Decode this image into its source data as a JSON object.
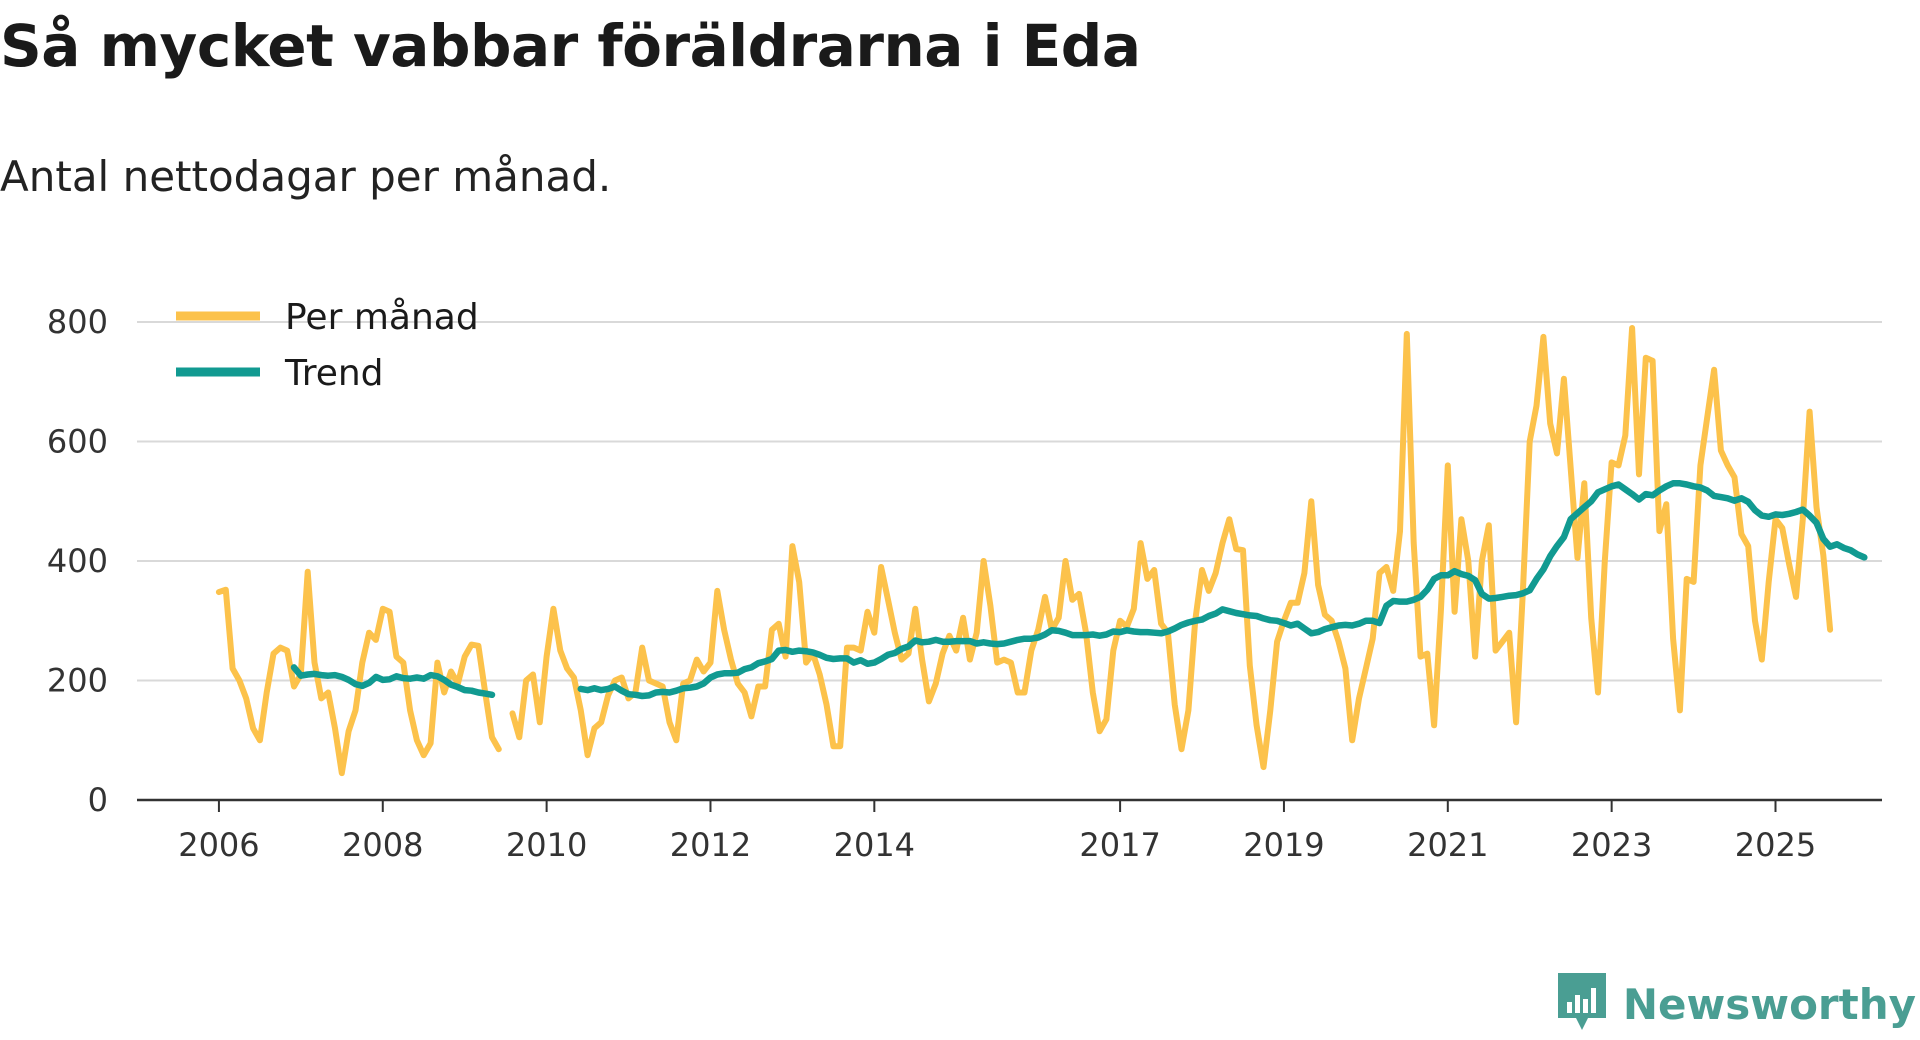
{
  "colors": {
    "monthly": "#fcc24b",
    "trend": "#119a91",
    "grid": "#d9d9d9",
    "axis": "#333333",
    "brand": "#4a9e93"
  },
  "brand": {
    "name": "Newsworthy",
    "icon": "bar-chart-logo-icon"
  },
  "chart_data": {
    "type": "line",
    "title": "Så mycket vabbar föräldrarna i Eda",
    "subtitle": "Antal nettodagar per månad.",
    "xlabel": "",
    "ylabel": "",
    "ylim": [
      0,
      800
    ],
    "xlim": [
      2005.0,
      2026.3
    ],
    "yticks": [
      0,
      200,
      400,
      600,
      800
    ],
    "xticks": [
      2006,
      2008,
      2010,
      2012,
      2014,
      2017,
      2019,
      2021,
      2023,
      2025
    ],
    "grid": true,
    "legend_position": "top-left",
    "series": [
      {
        "name": "Per månad",
        "segments": [
          {
            "start": 2006.0,
            "values": [
              348,
              352,
              220,
              200,
              170,
              120,
              100,
              180,
              245,
              255,
              250,
              190,
              210,
              382,
              230,
              170,
              180,
              120,
              45,
              115,
              150,
              230,
              280,
              268,
              320,
              315,
              240,
              230,
              150,
              100,
              75,
              95,
              230,
              180,
              215,
              195,
              240,
              260,
              258,
              180,
              105,
              85
            ]
          },
          {
            "start": 2009.5833,
            "values": [
              145,
              105,
              200,
              210,
              130,
              240,
              320,
              250,
              220,
              205,
              150,
              75,
              120,
              130,
              175,
              200,
              205,
              170,
              180,
              255,
              200,
              195,
              190,
              130,
              100,
              195,
              200,
              235,
              215,
              230,
              350,
              285,
              235,
              195,
              180,
              140,
              190,
              190,
              285,
              295,
              240,
              425,
              365,
              230,
              245,
              210,
              160,
              90,
              90,
              255,
              255,
              250,
              315,
              280,
              390,
              335,
              280,
              235,
              245,
              320,
              235,
              165,
              195,
              245,
              275,
              250,
              305,
              235,
              280,
              400,
              325,
              230,
              235,
              230,
              180,
              180,
              250,
              285,
              340,
              285,
              305,
              400,
              335,
              345,
              280,
              180,
              115,
              135,
              250,
              300,
              290,
              320,
              430,
              370,
              385,
              295,
              280,
              160,
              85,
              150,
              300,
              385,
              350,
              380,
              430,
              470,
              420,
              418,
              225,
              125,
              55,
              150,
              265,
              300,
              330,
              330,
              380,
              500,
              360,
              310,
              300,
              265,
              220,
              100,
              170,
              220,
              270,
              380,
              390,
              350,
              450,
              780,
              430,
              240,
              245,
              125,
              320,
              560,
              315,
              470,
              400,
              240,
              400,
              460,
              250,
              265,
              280,
              130,
              350,
              600,
              660,
              775,
              630,
              580,
              705,
              555,
              405,
              530,
              305,
              180,
              400,
              565,
              560,
              610,
              790,
              545,
              740,
              735,
              450,
              495,
              270,
              150,
              370,
              365,
              560,
              640,
              720,
              585,
              560,
              540,
              445,
              425,
              300,
              235,
              365,
              470,
              455,
              395,
              340,
              470,
              650,
              490,
              410,
              285
            ]
          }
        ]
      },
      {
        "name": "Trend",
        "segments": [
          {
            "start": 2006.9167,
            "values": [
              222,
              208,
              210,
              211,
              209,
              208,
              209,
              206,
              201,
              194,
              191,
              196,
              206,
              201,
              202,
              207,
              204,
              203,
              205,
              203,
              209,
              207,
              201,
              193,
              189,
              184,
              183,
              180,
              178,
              176
            ]
          },
          {
            "start": 2010.4167,
            "values": [
              186,
              184,
              187,
              184,
              186,
              190,
              183,
              177,
              176,
              174,
              175,
              180,
              181,
              180,
              183,
              187,
              188,
              190,
              195,
              205,
              210,
              212,
              212,
              213,
              219,
              222,
              229,
              232,
              236,
              250,
              251,
              248,
              250,
              249,
              247,
              243,
              238,
              236,
              237,
              237,
              230,
              234,
              228,
              230,
              236,
              243,
              246,
              253,
              257,
              267,
              264,
              265,
              268,
              265,
              265,
              266,
              266,
              266,
              262,
              264,
              262,
              261,
              262,
              265,
              268,
              270,
              270,
              272,
              277,
              284,
              283,
              280,
              276,
              276,
              276,
              277,
              275,
              277,
              282,
              281,
              284,
              282,
              281,
              281,
              280,
              279,
              282,
              287,
              293,
              297,
              300,
              302,
              308,
              312,
              319,
              316,
              313,
              311,
              309,
              308,
              304,
              301,
              300,
              296,
              292,
              295,
              287,
              279,
              281,
              286,
              289,
              292,
              293,
              292,
              295,
              300,
              300,
              296,
              325,
              333,
              332,
              332,
              335,
              340,
              352,
              370,
              376,
              376,
              383,
              378,
              375,
              368,
              345,
              337,
              338,
              340,
              342,
              343,
              346,
              351,
              370,
              386,
              408,
              425,
              440,
              470,
              480,
              490,
              500,
              515,
              520,
              525,
              528,
              520,
              512,
              503,
              512,
              510,
              518,
              525,
              530,
              530,
              528,
              525,
              523,
              518,
              509,
              507,
              505,
              501,
              505,
              499,
              485,
              476,
              474,
              478,
              477,
              479,
              482,
              486,
              476,
              464,
              437,
              424,
              428,
              422,
              418,
              411,
              406
            ]
          }
        ]
      }
    ]
  }
}
